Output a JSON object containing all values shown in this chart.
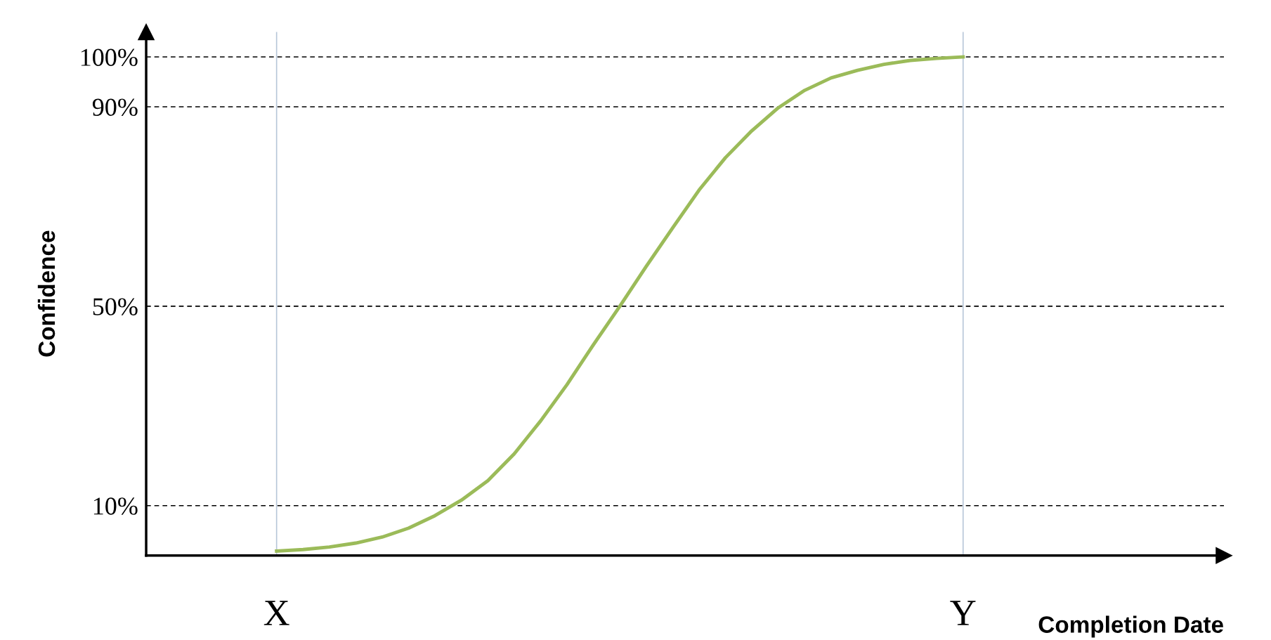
{
  "chart_data": {
    "type": "line",
    "xlabel": "Completion Date",
    "ylabel": "Confidence",
    "ylim": [
      0,
      105
    ],
    "categories": [
      "X",
      null,
      null,
      null,
      null,
      null,
      null,
      null,
      null,
      null,
      null,
      null,
      null,
      null,
      null,
      null,
      null,
      null,
      null,
      null,
      null,
      null,
      null,
      null,
      null,
      null,
      "Y"
    ],
    "yticks": [
      {
        "value": 10,
        "label": "10%"
      },
      {
        "value": 50,
        "label": "50%"
      },
      {
        "value": 90,
        "label": "90%"
      },
      {
        "value": 100,
        "label": "100%"
      }
    ],
    "grid": true,
    "marker": "none",
    "line_style": "solid",
    "series": [
      {
        "color": "#9bbb59",
        "values": [
          0.9,
          1.2,
          1.7,
          2.5,
          3.7,
          5.5,
          8,
          11.1,
          15,
          20.4,
          27,
          34.3,
          42.3,
          50,
          58,
          65.7,
          73.3,
          79.8,
          85.2,
          89.8,
          93.3,
          95.8,
          97.3,
          98.5,
          99.3,
          99.7,
          100
        ]
      }
    ]
  }
}
